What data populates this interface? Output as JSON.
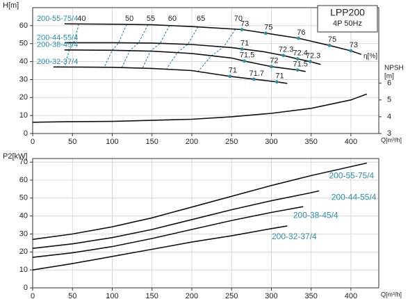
{
  "chart_data": [
    {
      "type": "line",
      "y_label": "H[m]",
      "x_label": "Q[m³/h]",
      "y2_label": [
        "NPSH",
        "[m]"
      ],
      "box": [
        "LPP200",
        "4P 50Hz"
      ],
      "eta_label": "η[%]",
      "xlim": [
        0,
        435
      ],
      "xticks": [
        0,
        50,
        100,
        150,
        200,
        250,
        300,
        350,
        400
      ],
      "ylim": [
        0,
        70
      ],
      "yticks": [
        0,
        10,
        20,
        30,
        40,
        50,
        60
      ],
      "y2lim": [
        3,
        10.5
      ],
      "y2ticks": [
        3,
        4,
        5,
        6
      ],
      "grid": true,
      "label_color": "#2b8fa8",
      "series": [
        {
          "name": "200-55-75/4",
          "color": "#111111",
          "x": [
            40,
            100,
            150,
            200,
            263,
            293,
            334,
            373,
            400,
            413
          ],
          "values": [
            61,
            60.8,
            60.5,
            59.5,
            57.8,
            55.8,
            53,
            49,
            46,
            44
          ],
          "eta_points": {
            "x": [
              263,
              293,
              334,
              373,
              400
            ],
            "values": [
              57.8,
              55.8,
              53,
              49,
              46
            ],
            "labels": [
              73,
              75,
              76,
              75,
              73
            ]
          }
        },
        {
          "name": "200-44-55/4",
          "color": "#111111",
          "x": [
            40,
            100,
            150,
            200,
            250,
            290,
            315,
            333,
            349,
            362
          ],
          "values": [
            50.5,
            50.5,
            50.3,
            49.5,
            47.8,
            45.5,
            43.4,
            41.5,
            40,
            38.4
          ],
          "eta_points": {
            "x": [
              263,
              315,
              333,
              349
            ],
            "values": [
              47,
              43.4,
              41.5,
              40
            ],
            "labels": [
              71,
              72.3,
              72.4,
              72.3
            ]
          }
        },
        {
          "name": "200-38-45/4",
          "color": "#111111",
          "x": [
            40,
            100,
            150,
            200,
            250,
            266,
            300,
            333,
            343
          ],
          "values": [
            46.5,
            46.3,
            45.8,
            44.5,
            42,
            40.3,
            37.2,
            35.3,
            34.5
          ],
          "eta_points": {
            "x": [
              266,
              300,
              333
            ],
            "values": [
              40.3,
              37.2,
              35.3
            ],
            "labels": [
              71.5,
              72,
              71.5
            ]
          }
        },
        {
          "name": "200-32-37/4",
          "color": "#111111",
          "x": [
            26,
            100,
            150,
            200,
            248,
            278,
            307,
            320
          ],
          "values": [
            37,
            36.8,
            36.2,
            35,
            31.8,
            30.2,
            28.7,
            27.9
          ],
          "eta_points": {
            "x": [
              248,
              278,
              307
            ],
            "values": [
              31.8,
              30.2,
              28.7
            ],
            "labels": [
              71,
              71.7,
              71
            ]
          }
        }
      ],
      "npsh": {
        "axis": "y2",
        "color": "#111111",
        "x": [
          0,
          40,
          100,
          200,
          250,
          300,
          350,
          400,
          420
        ],
        "values": [
          3.67,
          3.7,
          3.72,
          3.85,
          4.0,
          4.2,
          4.5,
          5.0,
          5.35
        ]
      },
      "efficiency_lines": [
        {
          "eta": 40,
          "x": [
            58,
            52,
            46,
            40
          ],
          "values": [
            60.9,
            50.5,
            46.5,
            36.9
          ]
        },
        {
          "eta": 50,
          "x": [
            118,
            108,
            100,
            90
          ],
          "values": [
            60.7,
            50.4,
            46.3,
            36.8
          ]
        },
        {
          "eta": 55,
          "x": [
            145,
            133,
            122,
            112
          ],
          "values": [
            60.5,
            50.4,
            46.1,
            36.6
          ]
        },
        {
          "eta": 60,
          "x": [
            172,
            160,
            148,
            138
          ],
          "values": [
            60.1,
            50.1,
            45.8,
            36.4
          ]
        },
        {
          "eta": 65,
          "x": [
            208,
            195,
            182,
            168
          ],
          "values": [
            59.4,
            49.6,
            45.1,
            35.7
          ]
        },
        {
          "eta": 70,
          "x": [
            255,
            240,
            225,
            208
          ],
          "values": [
            58.1,
            48.2,
            43.3,
            34.6
          ]
        }
      ]
    },
    {
      "type": "line",
      "y_label": "P2[kW]",
      "x_label": "Q[m³/h]",
      "xlim": [
        0,
        435
      ],
      "xticks": [
        0,
        50,
        100,
        150,
        200,
        250,
        300,
        350,
        400
      ],
      "ylim": [
        0,
        72
      ],
      "yticks": [
        0,
        10,
        20,
        30,
        40,
        50,
        60,
        70
      ],
      "grid": true,
      "label_color": "#2b8fa8",
      "series": [
        {
          "name": "200-55-75/4",
          "color": "#111111",
          "x": [
            0,
            50,
            100,
            150,
            200,
            250,
            300,
            350,
            400,
            420
          ],
          "values": [
            27,
            30,
            34,
            39,
            45,
            51,
            57,
            62.5,
            67.5,
            69.5
          ]
        },
        {
          "name": "200-44-55/4",
          "color": "#111111",
          "x": [
            0,
            50,
            100,
            150,
            200,
            250,
            300,
            350,
            360
          ],
          "values": [
            22,
            24.5,
            28,
            32.5,
            38,
            43.5,
            48.5,
            53,
            54
          ]
        },
        {
          "name": "200-38-45/4",
          "color": "#111111",
          "x": [
            0,
            50,
            100,
            150,
            200,
            250,
            300,
            340
          ],
          "values": [
            17,
            19.5,
            23,
            27.5,
            32.5,
            37.5,
            42,
            45.2
          ]
        },
        {
          "name": "200-32-37/4",
          "color": "#111111",
          "x": [
            0,
            50,
            100,
            150,
            200,
            250,
            300,
            320
          ],
          "values": [
            10,
            13.5,
            17.5,
            21.5,
            25.5,
            29,
            33,
            34.5
          ]
        }
      ]
    }
  ]
}
